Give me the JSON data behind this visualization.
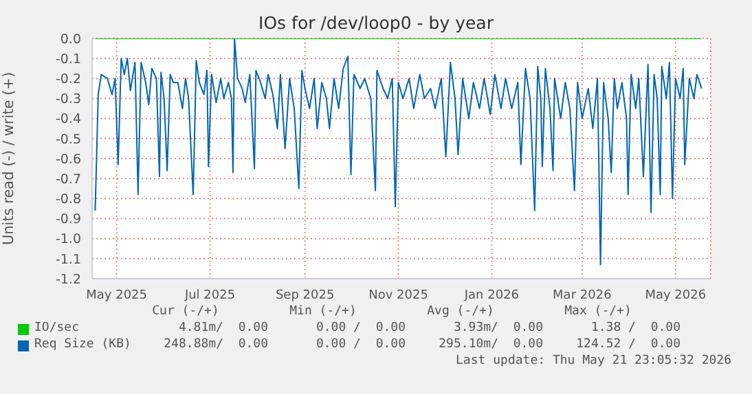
{
  "chart_data": {
    "type": "line",
    "title": "IOs for /dev/loop0 - by year",
    "ylabel": "Units read (-) / write (+)",
    "xlim": [
      "2025-04-15",
      "2026-05-24"
    ],
    "xticks": [
      {
        "value": "2025-05-01",
        "label": "May 2025"
      },
      {
        "value": "2025-07-01",
        "label": "Jul 2025"
      },
      {
        "value": "2025-09-01",
        "label": "Sep 2025"
      },
      {
        "value": "2025-11-01",
        "label": "Nov 2025"
      },
      {
        "value": "2026-01-01",
        "label": "Jan 2026"
      },
      {
        "value": "2026-03-01",
        "label": "Mar 2026"
      },
      {
        "value": "2026-05-01",
        "label": "May 2026"
      }
    ],
    "ylim": [
      -1.2,
      0.0
    ],
    "yticks": [
      {
        "value": 0,
        "label": "0.0"
      },
      -0.1,
      -0.2,
      -0.3,
      -0.4,
      -0.5,
      -0.6,
      -0.7,
      -0.8,
      -0.9,
      {
        "value": -1,
        "label": "-1.0"
      },
      -1.1,
      -1.2
    ],
    "grid": true,
    "legend": "bottom",
    "marker": "none",
    "line_style": "solid",
    "series": [
      {
        "name": "IO/sec",
        "color": "#00cc00",
        "x": [
          "2025-04-17",
          "2026-05-18"
        ],
        "values": [
          0,
          0
        ]
      },
      {
        "name": "Req Size (KB)",
        "color": "#0066b3",
        "x": [
          "2025-04-17",
          "2025-04-19",
          "2025-04-21",
          "2025-04-25",
          "2025-04-28",
          "2025-04-30",
          "2025-05-02",
          "2025-05-04",
          "2025-05-06",
          "2025-05-08",
          "2025-05-10",
          "2025-05-13",
          "2025-05-15",
          "2025-05-17",
          "2025-05-20",
          "2025-05-22",
          "2025-05-24",
          "2025-05-27",
          "2025-05-29",
          "2025-05-30",
          "2025-06-01",
          "2025-06-03",
          "2025-06-05",
          "2025-06-07",
          "2025-06-10",
          "2025-06-13",
          "2025-06-15",
          "2025-06-17",
          "2025-06-20",
          "2025-06-22",
          "2025-06-24",
          "2025-06-27",
          "2025-06-29",
          "2025-06-30",
          "2025-07-02",
          "2025-07-05",
          "2025-07-08",
          "2025-07-10",
          "2025-07-13",
          "2025-07-15",
          "2025-07-16",
          "2025-07-17",
          "2025-07-19",
          "2025-07-22",
          "2025-07-24",
          "2025-07-27",
          "2025-07-30",
          "2025-07-31",
          "2025-08-03",
          "2025-08-06",
          "2025-08-08",
          "2025-08-11",
          "2025-08-14",
          "2025-08-16",
          "2025-08-19",
          "2025-08-22",
          "2025-08-25",
          "2025-08-28",
          "2025-08-30",
          "2025-09-01",
          "2025-09-04",
          "2025-09-07",
          "2025-09-09",
          "2025-09-12",
          "2025-09-15",
          "2025-09-17",
          "2025-09-20",
          "2025-09-23",
          "2025-09-26",
          "2025-09-29",
          "2025-10-01",
          "2025-10-03",
          "2025-10-07",
          "2025-10-10",
          "2025-10-14",
          "2025-10-17",
          "2025-10-18",
          "2025-10-22",
          "2025-10-25",
          "2025-10-28",
          "2025-10-30",
          "2025-11-01",
          "2025-11-04",
          "2025-11-08",
          "2025-11-11",
          "2025-11-15",
          "2025-11-18",
          "2025-11-22",
          "2025-11-25",
          "2025-11-29",
          "2025-12-02",
          "2025-12-05",
          "2025-12-08",
          "2025-12-10",
          "2025-12-13",
          "2025-12-17",
          "2025-12-20",
          "2025-12-24",
          "2025-12-27",
          "2025-12-31",
          "2026-01-03",
          "2026-01-07",
          "2026-01-10",
          "2026-01-14",
          "2026-01-18",
          "2026-01-20",
          "2026-01-23",
          "2026-01-26",
          "2026-01-29",
          "2026-01-31",
          "2026-02-02",
          "2026-02-03",
          "2026-02-05",
          "2026-02-08",
          "2026-02-10",
          "2026-02-11",
          "2026-02-15",
          "2026-02-18",
          "2026-02-21",
          "2026-02-24",
          "2026-02-26",
          "2026-03-01",
          "2026-03-05",
          "2026-03-08",
          "2026-03-11",
          "2026-03-13",
          "2026-03-15",
          "2026-03-18",
          "2026-03-20",
          "2026-03-22",
          "2026-03-24",
          "2026-03-27",
          "2026-03-30",
          "2026-03-31",
          "2026-04-02",
          "2026-04-05",
          "2026-04-07",
          "2026-04-10",
          "2026-04-13",
          "2026-04-15",
          "2026-04-17",
          "2026-04-19",
          "2026-04-21",
          "2026-04-22",
          "2026-04-25",
          "2026-04-27",
          "2026-04-29",
          "2026-05-01",
          "2026-05-04",
          "2026-05-06",
          "2026-05-07",
          "2026-05-10",
          "2026-05-13",
          "2026-05-15",
          "2026-05-18"
        ],
        "values": [
          -0.86,
          -0.28,
          -0.18,
          -0.2,
          -0.28,
          -0.2,
          -0.63,
          -0.1,
          -0.18,
          -0.1,
          -0.26,
          -0.12,
          -0.78,
          -0.12,
          -0.22,
          -0.33,
          -0.15,
          -0.2,
          -0.69,
          -0.17,
          -0.3,
          -0.66,
          -0.18,
          -0.22,
          -0.22,
          -0.35,
          -0.2,
          -0.3,
          -0.78,
          -0.11,
          -0.22,
          -0.28,
          -0.16,
          -0.64,
          -0.18,
          -0.32,
          -0.2,
          -0.3,
          -0.22,
          -0.3,
          -0.67,
          0.0,
          -0.2,
          -0.25,
          -0.32,
          -0.18,
          -0.65,
          -0.16,
          -0.22,
          -0.3,
          -0.18,
          -0.28,
          -0.45,
          -0.18,
          -0.55,
          -0.2,
          -0.35,
          -0.75,
          -0.16,
          -0.25,
          -0.35,
          -0.2,
          -0.45,
          -0.22,
          -0.3,
          -0.45,
          -0.2,
          -0.35,
          -0.15,
          -0.09,
          -0.68,
          -0.18,
          -0.25,
          -0.2,
          -0.3,
          -0.76,
          -0.16,
          -0.25,
          -0.3,
          -0.2,
          -0.84,
          -0.22,
          -0.3,
          -0.2,
          -0.35,
          -0.18,
          -0.3,
          -0.25,
          -0.35,
          -0.2,
          -0.59,
          -0.12,
          -0.3,
          -0.58,
          -0.2,
          -0.4,
          -0.22,
          -0.35,
          -0.2,
          -0.38,
          -0.18,
          -0.35,
          -0.2,
          -0.35,
          -0.22,
          -0.63,
          -0.15,
          -0.3,
          -0.86,
          -0.14,
          -0.3,
          -0.64,
          -0.15,
          -0.35,
          -0.66,
          -0.2,
          -0.4,
          -0.22,
          -0.35,
          -0.76,
          -0.22,
          -0.4,
          -0.25,
          -0.45,
          -0.2,
          -1.13,
          -0.22,
          -0.4,
          -0.67,
          -0.2,
          -0.35,
          -0.22,
          -0.4,
          -0.78,
          -0.18,
          -0.35,
          -0.2,
          -0.69,
          -0.13,
          -0.87,
          -0.18,
          -0.3,
          -0.78,
          -0.14,
          -0.3,
          -0.12,
          -0.8,
          -0.2,
          -0.3,
          -0.15,
          -0.63,
          -0.2,
          -0.3,
          -0.18,
          -0.25
        ]
      }
    ],
    "annotations": [
      "Cur (-/+)",
      "Min (-/+)",
      "Avg (-/+)",
      "Max (-/+)",
      "4.81m/  0.00",
      "0.00 /  0.00",
      "3.93m/  0.00",
      "1.38 /  0.00",
      "248.88m/  0.00",
      "0.00 /  0.00",
      "295.10m/  0.00",
      "124.52 /  0.00",
      "Last update: Thu May 21 23:05:32 2026"
    ]
  }
}
